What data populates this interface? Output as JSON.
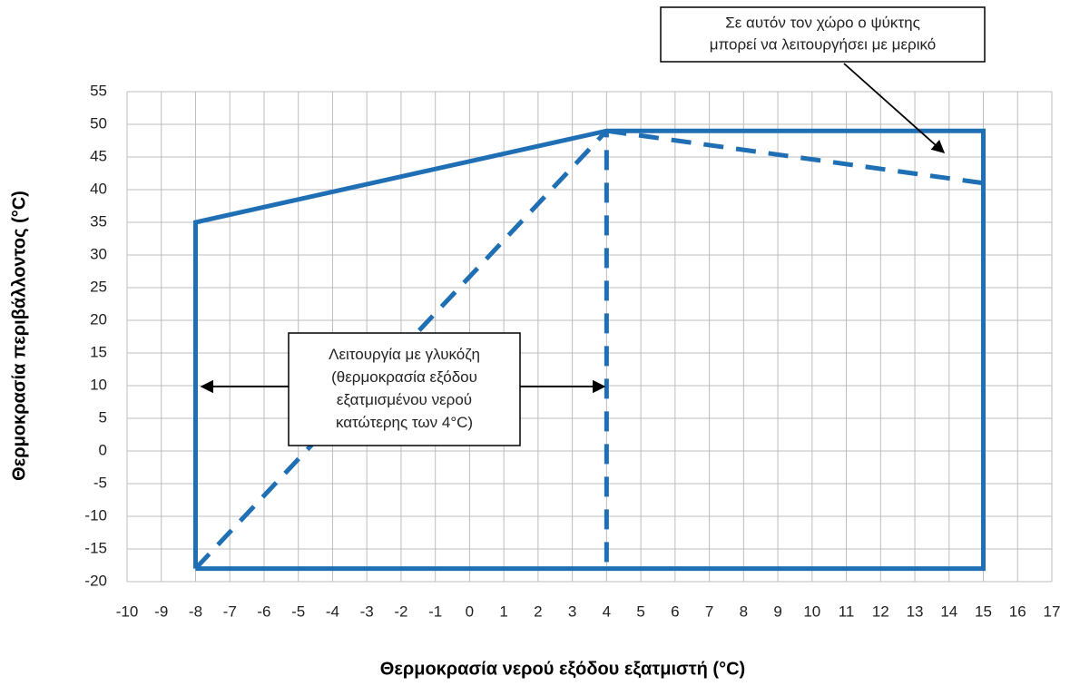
{
  "chart_data": {
    "type": "line",
    "xlabel": "Θερμοκρασία νερού εξόδου εξατμιστή (°C)",
    "ylabel": "Θερμοκρασία περιβάλλοντος (°C)",
    "xlim": [
      -10,
      17
    ],
    "xticks": [
      -10,
      -9,
      -8,
      -7,
      -6,
      -5,
      -4,
      -3,
      -2,
      -1,
      0,
      1,
      2,
      3,
      4,
      5,
      6,
      7,
      8,
      9,
      10,
      11,
      12,
      13,
      14,
      15,
      16,
      17
    ],
    "ylim": [
      -20,
      55
    ],
    "yticks": [
      -20,
      -15,
      -10,
      -5,
      0,
      5,
      10,
      15,
      20,
      25,
      30,
      35,
      40,
      45,
      50,
      55
    ],
    "grid": true,
    "series": [
      {
        "color": "#1f6fb5",
        "style": "solid",
        "x": [
          -8,
          -8,
          4,
          15,
          15,
          -8
        ],
        "values": [
          -18,
          35,
          49,
          49,
          -18,
          -18
        ]
      },
      {
        "color": "#1f6fb5",
        "style": "dashed",
        "x": [
          -8,
          4
        ],
        "values": [
          -18,
          49
        ]
      },
      {
        "color": "#1f6fb5",
        "style": "dashed",
        "x": [
          4,
          4
        ],
        "values": [
          -17,
          49
        ]
      },
      {
        "color": "#1f6fb5",
        "style": "dashed",
        "x": [
          4,
          15
        ],
        "values": [
          49,
          41
        ]
      }
    ],
    "annotations": [
      {
        "lines": [
          "Σε αυτόν τον χώρο ο ψύκτης",
          "μπορεί να λειτουργήσει με μερικό"
        ]
      },
      {
        "lines": [
          "Λειτουργία με γλυκόζη",
          "(θερμοκρασία  εξόδου",
          "εξατμισμένου  νερού",
          "κατώτερης των 4°C)"
        ]
      }
    ]
  }
}
